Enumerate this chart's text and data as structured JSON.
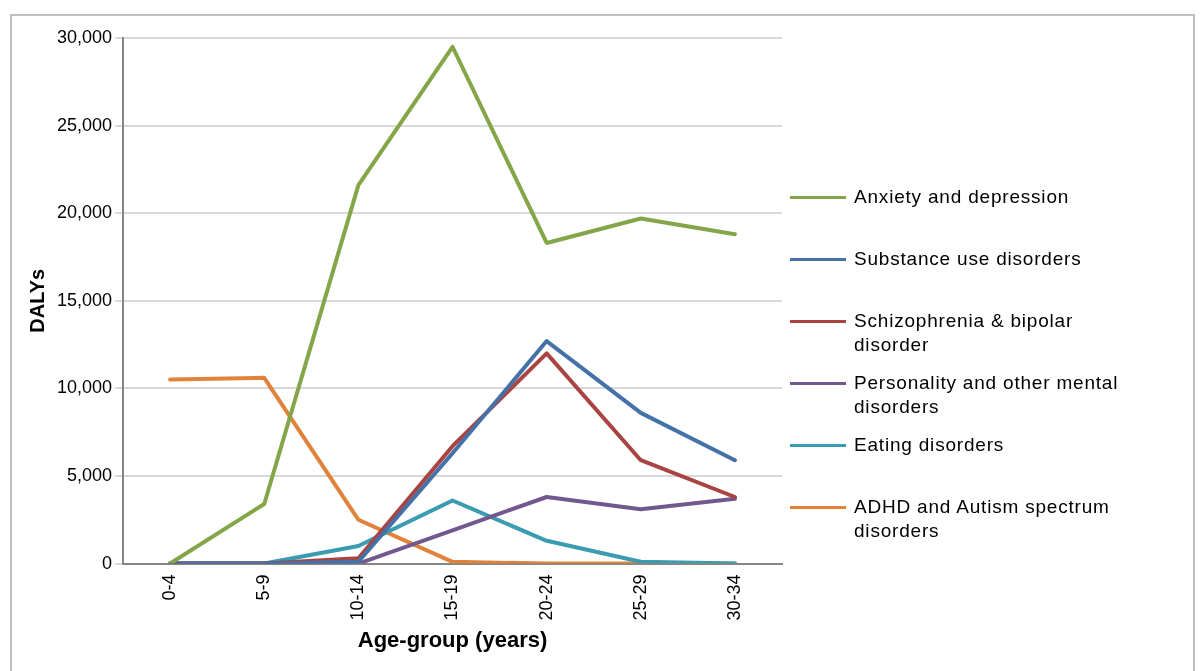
{
  "chart_data": {
    "type": "line",
    "xlabel": "Age-group (years)",
    "ylabel": "DALYs",
    "categories": [
      "0-4",
      "5-9",
      "10-14",
      "15-19",
      "20-24",
      "25-29",
      "30-34"
    ],
    "series": [
      {
        "name": "Anxiety and depression",
        "color": "#84a648",
        "values": [
          0,
          3400,
          21600,
          29500,
          18300,
          19700,
          18800
        ]
      },
      {
        "name": "Substance use disorders",
        "color": "#4472a8",
        "values": [
          0,
          0,
          100,
          6300,
          12700,
          8600,
          5900
        ]
      },
      {
        "name": "Schizophrenia & bipolar disorder",
        "color": "#a94443",
        "values": [
          0,
          0,
          300,
          6700,
          12000,
          5900,
          3800
        ]
      },
      {
        "name": "Personality and other mental disorders",
        "color": "#72588f",
        "values": [
          0,
          0,
          0,
          1900,
          3800,
          3100,
          3700
        ]
      },
      {
        "name": "Eating disorders",
        "color": "#3b9bb0",
        "values": [
          0,
          0,
          1000,
          3600,
          1300,
          100,
          0
        ]
      },
      {
        "name": "ADHD and Autism spectrum disorders",
        "color": "#e0823a",
        "values": [
          10500,
          10600,
          2500,
          100,
          0,
          0,
          0
        ]
      }
    ],
    "ylim": [
      0,
      30000
    ],
    "yticks": [
      0,
      {
        "value": 5000,
        "label": "5,000"
      },
      {
        "value": 10000,
        "label": "10,000"
      },
      {
        "value": 15000,
        "label": "15,000"
      },
      {
        "value": 20000,
        "label": "20,000"
      },
      {
        "value": 25000,
        "label": "25,000"
      },
      {
        "value": 30000,
        "label": "30,000"
      }
    ],
    "grid": "y",
    "legend": "right",
    "marker": "none",
    "line_style": "solid"
  }
}
